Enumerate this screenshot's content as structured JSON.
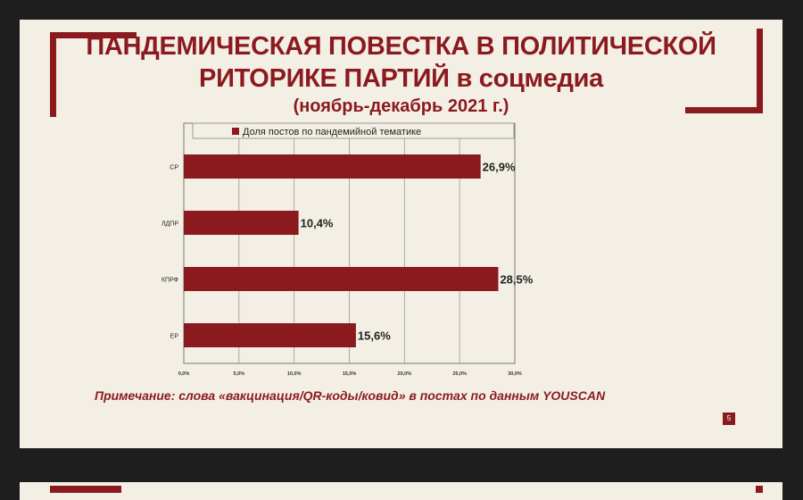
{
  "slide": {
    "title_line1": "ПАНДЕМИЧЕСКАЯ ПОВЕСТКА В ПОЛИТИЧЕСКОЙ",
    "title_line2": "РИТОРИКЕ ПАРТИЙ в соцмедиа",
    "title_line3": "(ноябрь-декабрь 2021 г.)",
    "note": "Примечание: слова «вакцинация/QR-коды/ковид» в постах по данным YOUSCAN",
    "page_number": "5",
    "accent_color": "#8b1a1f"
  },
  "chart_data": {
    "type": "bar",
    "orientation": "horizontal",
    "categories": [
      "СР",
      "ЛДПР",
      "КПРФ",
      "ЕР"
    ],
    "series": [
      {
        "name": "Доля постов по пандемийной тематике",
        "values": [
          26.9,
          10.4,
          28.5,
          15.6
        ],
        "labels": [
          "26,9%",
          "10,4%",
          "28,5%",
          "15,6%"
        ],
        "color": "#8b1a1f"
      }
    ],
    "xlim": [
      0,
      30
    ],
    "xticks": [
      "0,0%",
      "5,0%",
      "10,0%",
      "15,0%",
      "20,0%",
      "25,0%",
      "30,0%"
    ],
    "grid": true,
    "legend_position": "top"
  }
}
